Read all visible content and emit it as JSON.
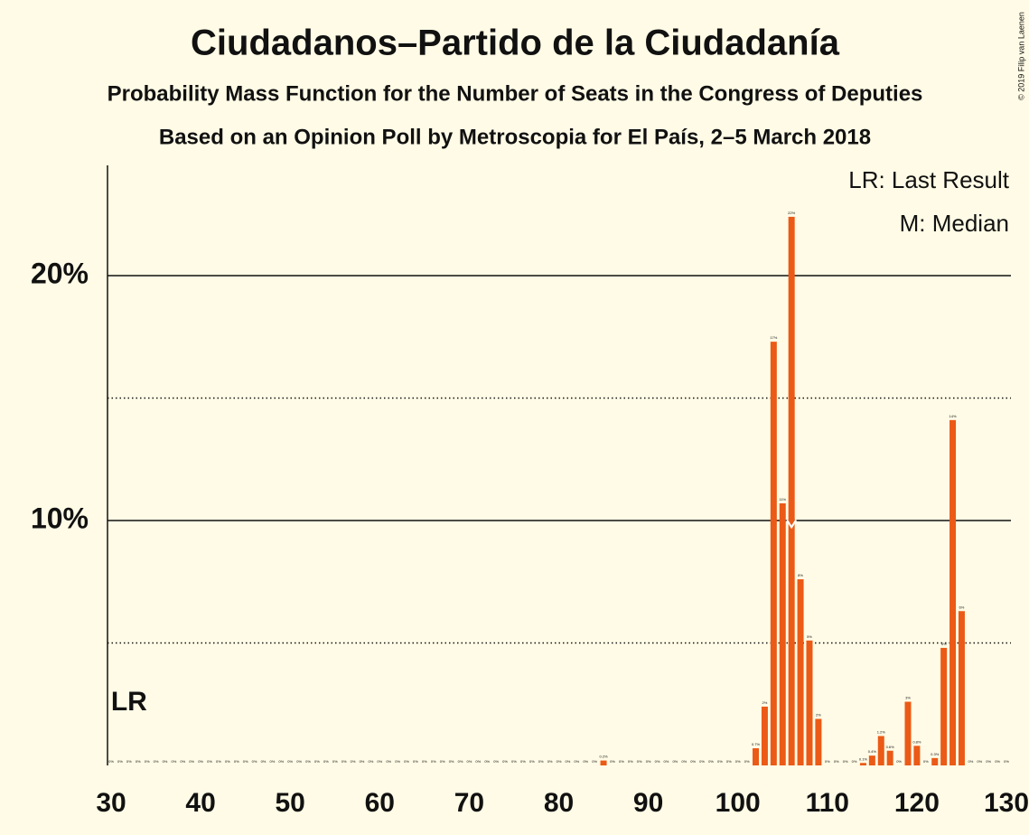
{
  "chart_data": {
    "type": "bar",
    "title": "Ciudadanos–Partido de la Ciudadanía",
    "subtitle": "Probability Mass Function for the Number of Seats in the Congress of Deputies",
    "subtitle2": "Based on an Opinion Poll by Metroscopia for El País, 2–5 March 2018",
    "copyright": "© 2019 Filip van Laenen",
    "legend": [
      "LR: Last Result",
      "M: Median"
    ],
    "last_result": 32,
    "last_result_label": "LR",
    "median": 106,
    "color": "#eb5a16",
    "x": [
      30,
      31,
      32,
      33,
      34,
      35,
      36,
      37,
      38,
      39,
      40,
      41,
      42,
      43,
      44,
      45,
      46,
      47,
      48,
      49,
      50,
      51,
      52,
      53,
      54,
      55,
      56,
      57,
      58,
      59,
      60,
      61,
      62,
      63,
      64,
      65,
      66,
      67,
      68,
      69,
      70,
      71,
      72,
      73,
      74,
      75,
      76,
      77,
      78,
      79,
      80,
      81,
      82,
      83,
      84,
      85,
      86,
      87,
      88,
      89,
      90,
      91,
      92,
      93,
      94,
      95,
      96,
      97,
      98,
      99,
      100,
      101,
      102,
      103,
      104,
      105,
      106,
      107,
      108,
      109,
      110,
      111,
      112,
      113,
      114,
      115,
      116,
      117,
      118,
      119,
      120,
      121,
      122,
      123,
      124,
      125,
      126,
      127,
      128,
      129,
      130
    ],
    "values": [
      0,
      0,
      0,
      0,
      0,
      0,
      0,
      0,
      0,
      0,
      0,
      0,
      0,
      0,
      0,
      0,
      0,
      0,
      0,
      0,
      0,
      0,
      0,
      0,
      0,
      0,
      0,
      0,
      0,
      0,
      0,
      0,
      0,
      0,
      0,
      0,
      0,
      0,
      0,
      0,
      0,
      0,
      0,
      0,
      0,
      0,
      0,
      0,
      0,
      0,
      0,
      0,
      0,
      0,
      0,
      0.2,
      0,
      0,
      0,
      0,
      0,
      0,
      0,
      0,
      0,
      0,
      0,
      0,
      0,
      0,
      0,
      0,
      0.7,
      2.4,
      17.3,
      10.7,
      22.4,
      7.6,
      5.1,
      1.9,
      0,
      0,
      0,
      0,
      0.1,
      0.4,
      1.2,
      0.6,
      0,
      2.6,
      0.8,
      0,
      0.3,
      4.8,
      14.1,
      6.3,
      0,
      0,
      0,
      0,
      0
    ],
    "value_labels": [
      "0%",
      "0%",
      "0%",
      "0%",
      "0%",
      "0%",
      "0%",
      "0%",
      "0%",
      "0%",
      "0%",
      "0%",
      "0%",
      "0%",
      "0%",
      "0%",
      "0%",
      "0%",
      "0%",
      "0%",
      "0%",
      "0%",
      "0%",
      "0%",
      "0%",
      "0%",
      "0%",
      "0%",
      "0%",
      "0%",
      "0%",
      "0%",
      "0%",
      "0%",
      "0%",
      "0%",
      "0%",
      "0%",
      "0%",
      "0%",
      "0%",
      "0%",
      "0%",
      "0%",
      "0%",
      "0%",
      "0%",
      "0%",
      "0%",
      "0%",
      "0%",
      "0%",
      "0%",
      "0%",
      "0%",
      "0.2%",
      "0%",
      "0%",
      "0%",
      "0%",
      "0%",
      "0%",
      "0%",
      "0%",
      "0%",
      "0%",
      "0%",
      "0%",
      "0%",
      "0%",
      "0%",
      "0%",
      "0.7%",
      "2%",
      "17%",
      "11%",
      "22%",
      "8%",
      "5%",
      "2%",
      "0%",
      "0%",
      "0%",
      "0%",
      "0.1%",
      "0.4%",
      "1.2%",
      "0.6%",
      "0%",
      "3%",
      "0.8%",
      "0%",
      "0.3%",
      "5%",
      "14%",
      "6%",
      "0%",
      "0%",
      "0%",
      "0%",
      "0%"
    ],
    "xlim": [
      30,
      130
    ],
    "xticks": [
      30,
      40,
      50,
      60,
      70,
      80,
      90,
      100,
      110,
      120,
      130
    ],
    "ylim": [
      0,
      24.5
    ],
    "yticks": [
      {
        "value": 10,
        "label": "10%"
      },
      {
        "value": 20,
        "label": "20%"
      }
    ],
    "minor_yticks": [
      5,
      15
    ],
    "grid": true
  }
}
